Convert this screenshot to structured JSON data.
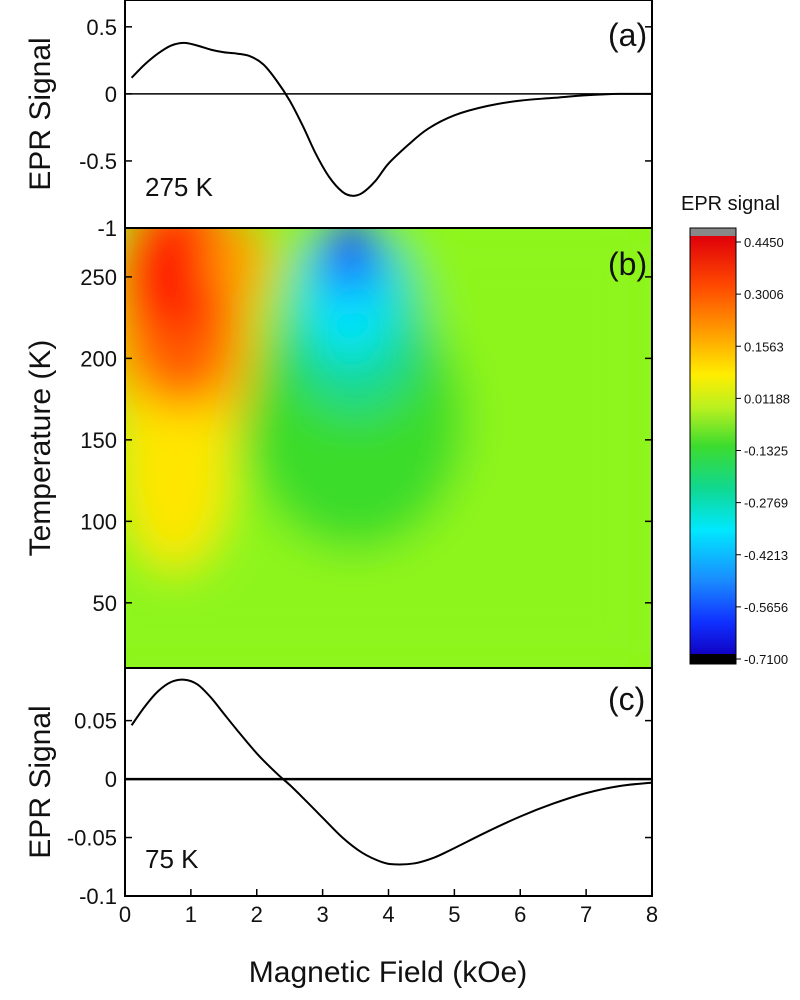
{
  "chart_data": [
    {
      "panel": "(a)",
      "type": "line",
      "ylabel": "EPR Signal",
      "annotation": "275 K",
      "xlim": [
        0,
        8
      ],
      "ylim": [
        -1,
        0.7
      ],
      "yticks": [
        {
          "value": 0.5,
          "label": "0.5"
        },
        {
          "value": 0,
          "label": "0"
        },
        {
          "value": -0.5,
          "label": "-0.5"
        },
        {
          "value": -1,
          "label": "-1"
        }
      ],
      "zero_line": true,
      "series": [
        {
          "x": [
            0.1,
            0.3,
            0.5,
            0.7,
            0.9,
            1.1,
            1.3,
            1.5,
            1.7,
            1.9,
            2.1,
            2.3,
            2.5,
            2.7,
            2.9,
            3.1,
            3.3,
            3.45,
            3.6,
            3.8,
            4.0,
            4.3,
            4.6,
            5.0,
            5.5,
            6.0,
            6.5,
            7.0,
            7.5,
            8.0
          ],
          "y": [
            0.12,
            0.22,
            0.3,
            0.36,
            0.38,
            0.36,
            0.33,
            0.31,
            0.3,
            0.28,
            0.22,
            0.1,
            -0.05,
            -0.24,
            -0.45,
            -0.62,
            -0.73,
            -0.76,
            -0.74,
            -0.65,
            -0.52,
            -0.38,
            -0.26,
            -0.16,
            -0.09,
            -0.05,
            -0.03,
            -0.01,
            0.0,
            0.0
          ]
        }
      ]
    },
    {
      "panel": "(b)",
      "type": "heatmap",
      "ylabel": "Temperature (K)",
      "xlim": [
        0,
        8
      ],
      "ylim": [
        10,
        280
      ],
      "yticks": [
        {
          "value": 250,
          "label": "250"
        },
        {
          "value": 200,
          "label": "200"
        },
        {
          "value": 150,
          "label": "150"
        },
        {
          "value": 100,
          "label": "100"
        },
        {
          "value": 50,
          "label": "50"
        }
      ],
      "colorbar": {
        "title": "EPR signal",
        "min": -0.71,
        "max": 0.445,
        "ticks": [
          "0.4450",
          "0.3006",
          "0.1563",
          "0.01188",
          "-0.1325",
          "-0.2769",
          "-0.4213",
          "-0.5656",
          "-0.7100"
        ]
      }
    },
    {
      "panel": "(c)",
      "type": "line",
      "ylabel": "EPR Signal",
      "xlabel": "Magnetic Field (kOe)",
      "annotation": "75 K",
      "xlim": [
        0,
        8
      ],
      "ylim": [
        -0.1,
        0.095
      ],
      "xticks": [
        "0",
        "1",
        "2",
        "3",
        "4",
        "5",
        "6",
        "7",
        "8"
      ],
      "yticks": [
        {
          "value": 0.05,
          "label": "0.05"
        },
        {
          "value": 0,
          "label": "0"
        },
        {
          "value": -0.05,
          "label": "-0.05"
        },
        {
          "value": -0.1,
          "label": "-0.1"
        }
      ],
      "zero_line": true,
      "series": [
        {
          "x": [
            0.1,
            0.3,
            0.5,
            0.7,
            0.9,
            1.1,
            1.3,
            1.5,
            1.7,
            2.0,
            2.3,
            2.5,
            2.7,
            3.0,
            3.3,
            3.6,
            3.9,
            4.1,
            4.4,
            4.7,
            5.0,
            5.5,
            6.0,
            6.5,
            7.0,
            7.5,
            8.0
          ],
          "y": [
            0.046,
            0.062,
            0.075,
            0.083,
            0.085,
            0.081,
            0.07,
            0.056,
            0.042,
            0.022,
            0.005,
            -0.005,
            -0.016,
            -0.033,
            -0.05,
            -0.063,
            -0.071,
            -0.073,
            -0.072,
            -0.067,
            -0.059,
            -0.045,
            -0.032,
            -0.021,
            -0.012,
            -0.006,
            -0.003
          ]
        }
      ]
    }
  ]
}
